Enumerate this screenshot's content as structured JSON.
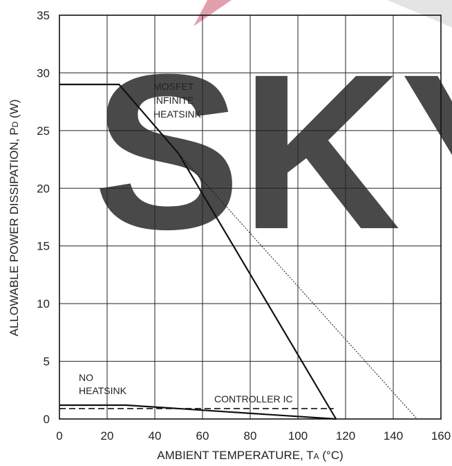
{
  "chart_data": {
    "type": "line",
    "xlabel_main": "AMBIENT TEMPERATURE, T",
    "xlabel_sub": "A",
    "xlabel_unit": " (°C)",
    "ylabel_main": "ALLOWABLE POWER DISSIPATION, P",
    "ylabel_sub": "D",
    "ylabel_unit": " (W)",
    "xlim": [
      0,
      160
    ],
    "ylim": [
      0,
      35
    ],
    "x_ticks": [
      "0",
      "20",
      "40",
      "60",
      "80",
      "100",
      "120",
      "140",
      "160"
    ],
    "y_ticks": [
      "0",
      "5",
      "10",
      "15",
      "20",
      "25",
      "30",
      "35"
    ],
    "grid": true,
    "series": [
      {
        "key": "mosfet_infinite",
        "style": "solid",
        "points": [
          [
            0,
            29
          ],
          [
            25,
            29
          ],
          [
            50,
            23
          ],
          [
            116,
            0
          ]
        ]
      },
      {
        "key": "mosfet_extrapolated",
        "style": "dotted",
        "points": [
          [
            50,
            23
          ],
          [
            150,
            0
          ]
        ]
      },
      {
        "key": "no_heatsink",
        "style": "solid",
        "points": [
          [
            0,
            1.2
          ],
          [
            28,
            1.2
          ],
          [
            116,
            0
          ]
        ]
      },
      {
        "key": "controller_ic",
        "style": "dashed",
        "points": [
          [
            0,
            0.9
          ],
          [
            115,
            0.9
          ]
        ]
      }
    ],
    "annotations": {
      "mosfet": [
        "MOSFET",
        "INFINITE",
        "HEATSINK"
      ],
      "no_heatsink": [
        "NO",
        "HEATSINK"
      ],
      "controller": "CONTROLLER IC"
    },
    "watermark": {
      "text": "SKY",
      "color": "#dc8fa0"
    },
    "colors": {
      "line": "#111111",
      "grid": "#222222"
    }
  }
}
